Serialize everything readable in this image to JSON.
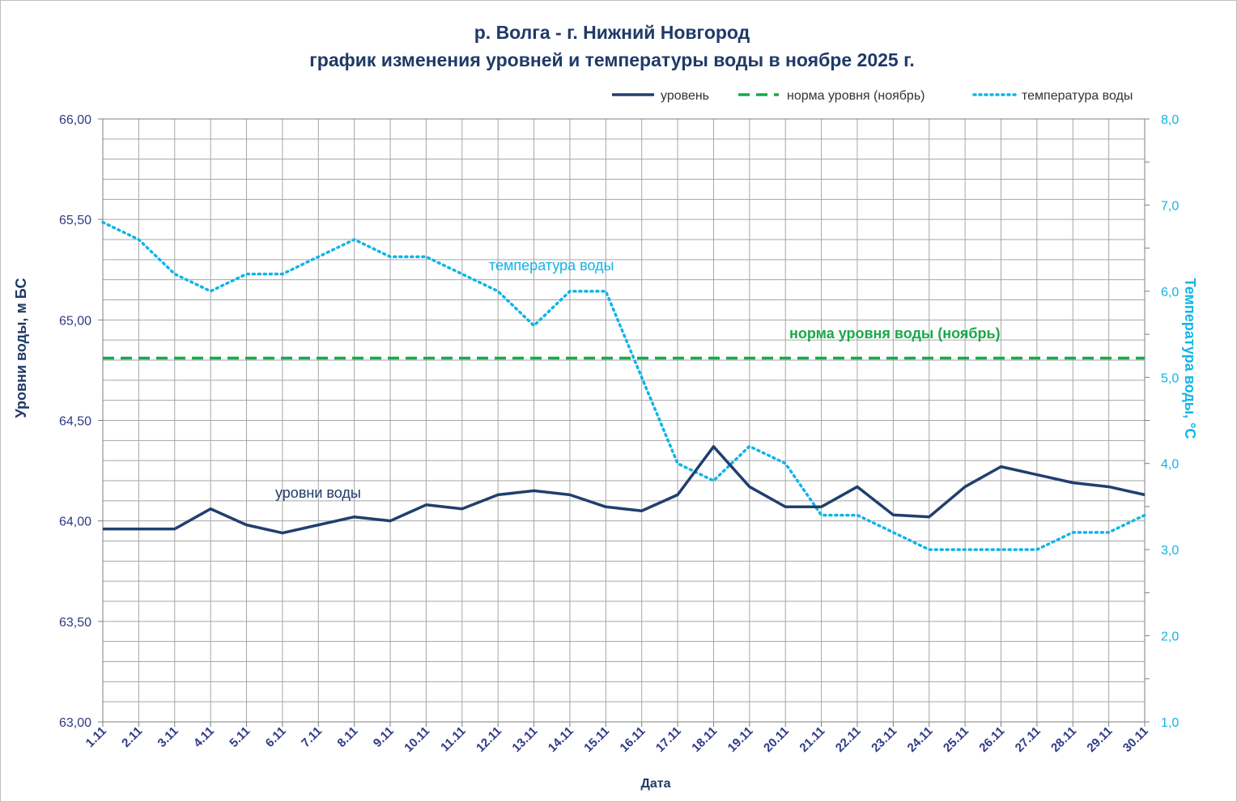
{
  "chart_data": {
    "type": "line",
    "title_line1": "р. Волга - г. Нижний Новгород",
    "title_line2": "график изменения уровней и температуры  воды в ноябре 2025 г.",
    "xlabel": "Дата",
    "ylabel_left": "Уровни воды, м БС",
    "ylabel_right": "Температура воды, °С",
    "categories": [
      "1.11",
      "2.11",
      "3.11",
      "4.11",
      "5.11",
      "6.11",
      "7.11",
      "8.11",
      "9.11",
      "10.11",
      "11.11",
      "12.11",
      "13.11",
      "14.11",
      "15.11",
      "16.11",
      "17.11",
      "18.11",
      "19.11",
      "20.11",
      "21.11",
      "22.11",
      "23.11",
      "24.11",
      "25.11",
      "26.11",
      "27.11",
      "28.11",
      "29.11",
      "30.11"
    ],
    "ylim_left": [
      63.0,
      66.0
    ],
    "ylim_right": [
      1.0,
      8.0
    ],
    "yticks_left": [
      "63,00",
      "63,50",
      "64,00",
      "64,50",
      "65,00",
      "65,50",
      "66,00"
    ],
    "yticks_right": [
      "1,0",
      "2,0",
      "3,0",
      "4,0",
      "5,0",
      "6,0",
      "7,0",
      "8,0"
    ],
    "grid": true,
    "legend_position": "top-right",
    "series": [
      {
        "name": "уровень",
        "axis": "left",
        "style": "solid",
        "color": "#1f3f6e",
        "values": [
          63.96,
          63.96,
          63.96,
          64.06,
          63.98,
          63.94,
          63.98,
          64.02,
          64.0,
          64.08,
          64.06,
          64.13,
          64.15,
          64.13,
          64.07,
          64.05,
          64.13,
          64.37,
          64.17,
          64.07,
          64.07,
          64.17,
          64.03,
          64.02,
          64.17,
          64.27,
          64.23,
          64.19,
          64.17,
          64.13
        ]
      },
      {
        "name": "норма уровня (ноябрь)",
        "axis": "left",
        "style": "dashed",
        "color": "#1aa84a",
        "values": [
          64.81,
          64.81,
          64.81,
          64.81,
          64.81,
          64.81,
          64.81,
          64.81,
          64.81,
          64.81,
          64.81,
          64.81,
          64.81,
          64.81,
          64.81,
          64.81,
          64.81,
          64.81,
          64.81,
          64.81,
          64.81,
          64.81,
          64.81,
          64.81,
          64.81,
          64.81,
          64.81,
          64.81,
          64.81,
          64.81
        ]
      },
      {
        "name": "температура воды",
        "axis": "right",
        "style": "dotted",
        "color": "#10b4e8",
        "values": [
          6.8,
          6.6,
          6.2,
          6.0,
          6.2,
          6.2,
          6.4,
          6.6,
          6.4,
          6.4,
          6.2,
          6.0,
          5.6,
          6.0,
          6.0,
          5.0,
          4.0,
          3.8,
          4.2,
          4.0,
          3.4,
          3.4,
          3.2,
          3.0,
          3.0,
          3.0,
          3.0,
          3.2,
          3.2,
          3.4
        ]
      }
    ],
    "annotations": {
      "level": "уровни воды",
      "temperature": "температура воды",
      "norm": "норма уровня воды  (ноябрь)"
    }
  }
}
